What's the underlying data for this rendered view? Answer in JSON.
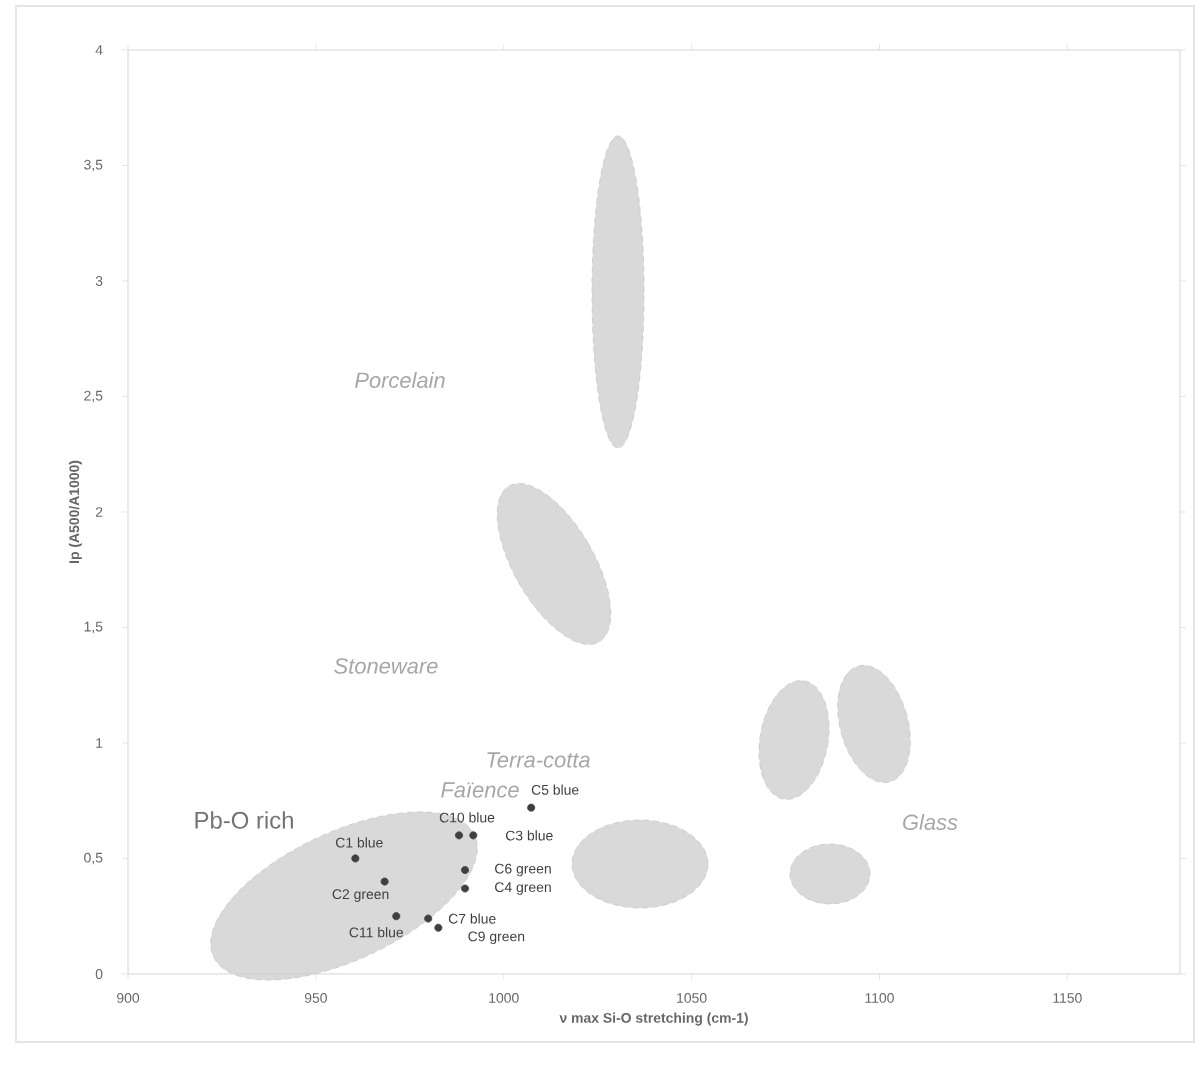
{
  "chart_data": {
    "type": "scatter",
    "xlabel": "ν max Si-O stretching (cm-1)",
    "ylabel": "Ip (A500/A1000)",
    "xlim": [
      900,
      1180
    ],
    "ylim": [
      0,
      4
    ],
    "xticks": [
      900,
      950,
      1000,
      1050,
      1100,
      1150
    ],
    "yticks": [
      0,
      {
        "value": 0.5,
        "label": "0,5"
      },
      1,
      {
        "value": 1.5,
        "label": "1,5"
      },
      2,
      {
        "value": 2.5,
        "label": "2,5"
      },
      3,
      {
        "value": 3.5,
        "label": "3,5"
      },
      4
    ],
    "marker": "circle",
    "series": [
      {
        "color": "#404040",
        "x": [
          960.5,
          968.3,
          971.4,
          979.9,
          982.6,
          989.7,
          989.7,
          988.1,
          991.9,
          1007.3
        ],
        "values": [
          0.5,
          0.4,
          0.25,
          0.24,
          0.2,
          0.45,
          0.37,
          0.6,
          0.6,
          0.72
        ]
      }
    ],
    "annotations": [
      {
        "text": "C1 blue",
        "x": 960.5,
        "y": 0.5
      },
      {
        "text": "C2 green",
        "x": 968.3,
        "y": 0.4
      },
      {
        "text": "C11 blue",
        "x": 971.4,
        "y": 0.25
      },
      {
        "text": "C7 blue",
        "x": 979.9,
        "y": 0.24
      },
      {
        "text": "C9 green",
        "x": 982.6,
        "y": 0.2
      },
      {
        "text": "C6 green",
        "x": 989.7,
        "y": 0.45
      },
      {
        "text": "C4 green",
        "x": 989.7,
        "y": 0.37
      },
      {
        "text": "C10 blue",
        "x": 988.1,
        "y": 0.6
      },
      {
        "text": "C3 blue",
        "x": 991.9,
        "y": 0.6
      },
      {
        "text": "C5 blue",
        "x": 1007.3,
        "y": 0.72
      },
      "Porcelain",
      "Stoneware",
      "Terra-cotta",
      "Faïence",
      "Glass",
      "Pb-O rich"
    ]
  }
}
